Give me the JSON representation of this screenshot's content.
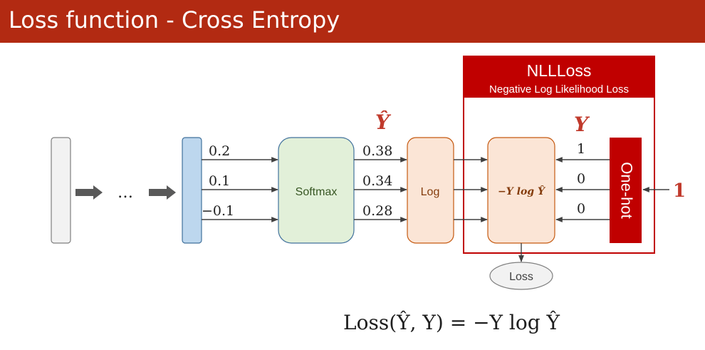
{
  "title": "Loss function - Cross Entropy",
  "colors": {
    "accent_red": "#b22a12",
    "nll_red": "#c00000",
    "blue": "#bdd7ee",
    "green": "#e2f0d9",
    "peach": "#fbe5d6",
    "gray": "#f2f2f2"
  },
  "ellipsis": "…",
  "logits": [
    "0.2",
    "0.1",
    "−0.1"
  ],
  "softmax_label": "Softmax",
  "y_hat_label": "Ŷ",
  "probabilities": [
    "0.38",
    "0.34",
    "0.28"
  ],
  "log_label": "Log",
  "nll": {
    "title": "NLLLoss",
    "subtitle": "Negative Log Likelihood Loss",
    "node_label": "−Y log Ŷ"
  },
  "y_label": "Y",
  "targets": [
    "1",
    "0",
    "0"
  ],
  "one_hot_label": "One-hot",
  "class_index": "1",
  "loss_node": "Loss",
  "formula": "Loss(Ŷ, Y) = −Y log Ŷ"
}
